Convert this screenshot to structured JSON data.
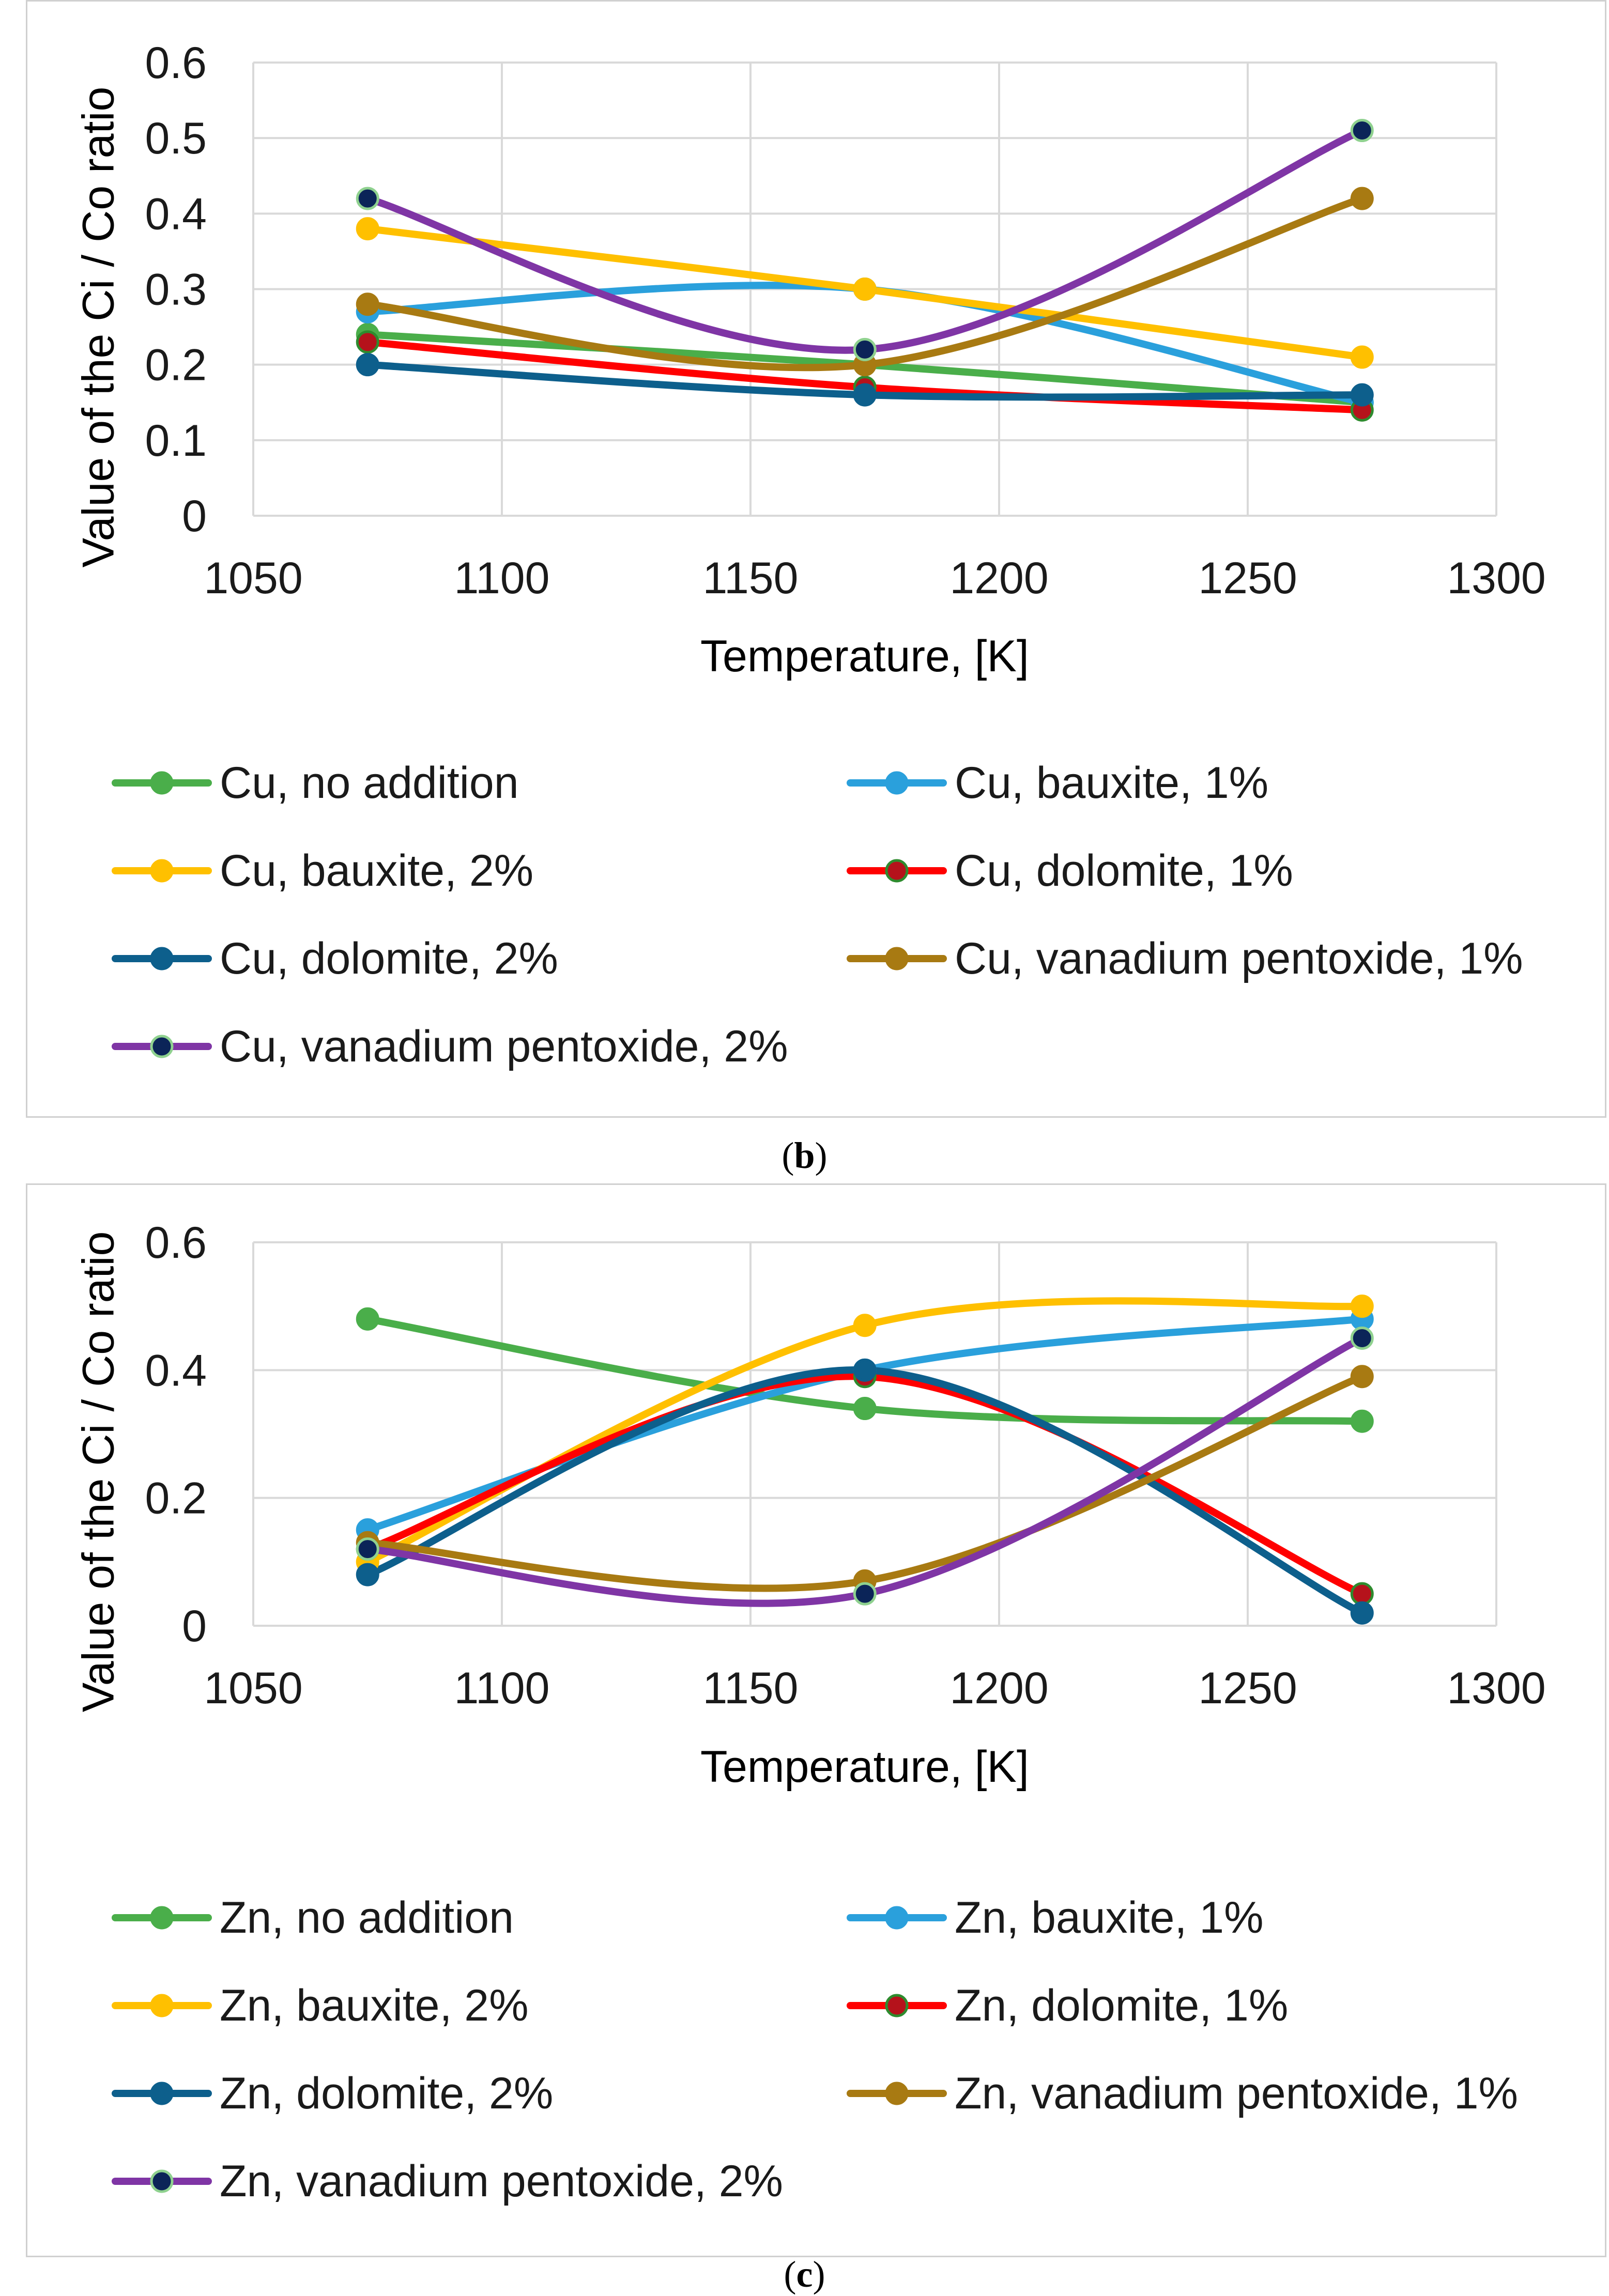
{
  "captions": {
    "b_open": "(",
    "b_letter": "b",
    "b_close": ")",
    "c_open": "(",
    "c_letter": "c",
    "c_close": ")"
  },
  "chart_data": [
    {
      "type": "line",
      "smooth": true,
      "panel_label": "(b)",
      "xlabel": "Temperature, [K]",
      "ylabel": "Value of the Ci / Co ratio",
      "xlim": [
        1050,
        1300
      ],
      "ylim": [
        0,
        0.6
      ],
      "xticks": [
        1050,
        1100,
        1150,
        1200,
        1250,
        1300
      ],
      "yticks": [
        0,
        0.1,
        0.2,
        0.3,
        0.4,
        0.5,
        0.6
      ],
      "ytick_labels": [
        "0",
        "0.1",
        "0.2",
        "0.3",
        "0.4",
        "0.5",
        "0.6"
      ],
      "grid": true,
      "legend_position": "bottom",
      "x": [
        1073,
        1173,
        1273
      ],
      "series": [
        {
          "name": "Cu, no addition",
          "values": [
            0.24,
            0.2,
            0.15
          ],
          "color": "#4aae4a",
          "marker_fill": "#4aae4a",
          "marker_edge": "#4aae4a"
        },
        {
          "name": "Cu, bauxite, 1%",
          "values": [
            0.27,
            0.3,
            0.15
          ],
          "color": "#2aa0dc",
          "marker_fill": "#2aa0dc",
          "marker_edge": "#2aa0dc"
        },
        {
          "name": "Cu, bauxite, 2%",
          "values": [
            0.38,
            0.3,
            0.21
          ],
          "color": "#ffc000",
          "marker_fill": "#ffc000",
          "marker_edge": "#ffc000"
        },
        {
          "name": "Cu, dolomite, 1%",
          "values": [
            0.23,
            0.17,
            0.14
          ],
          "color": "#ff0000",
          "marker_fill": "#b5121b",
          "marker_edge": "#2e8b2e"
        },
        {
          "name": "Cu, dolomite, 2%",
          "values": [
            0.2,
            0.16,
            0.16
          ],
          "color": "#0d5f8c",
          "marker_fill": "#0d5f8c",
          "marker_edge": "#0d5f8c"
        },
        {
          "name": "Cu, vanadium pentoxide, 1%",
          "values": [
            0.28,
            0.2,
            0.42
          ],
          "color": "#a87a12",
          "marker_fill": "#a87a12",
          "marker_edge": "#a87a12"
        },
        {
          "name": "Cu, vanadium pentoxide, 2%",
          "values": [
            0.42,
            0.22,
            0.51
          ],
          "color": "#7f35a5",
          "marker_fill": "#0b2458",
          "marker_edge": "#8fd18f"
        }
      ]
    },
    {
      "type": "line",
      "smooth": true,
      "panel_label": "(c)",
      "xlabel": "Temperature, [K]",
      "ylabel": "Value of the Ci / Co ratio",
      "xlim": [
        1050,
        1300
      ],
      "ylim": [
        0,
        0.6
      ],
      "xticks": [
        1050,
        1100,
        1150,
        1200,
        1250,
        1300
      ],
      "yticks": [
        0,
        0.2,
        0.4,
        0.6
      ],
      "ytick_labels": [
        "0",
        "0.2",
        "0.4",
        "0.6"
      ],
      "grid": true,
      "legend_position": "bottom",
      "x": [
        1073,
        1173,
        1273
      ],
      "series": [
        {
          "name": "Zn, no addition",
          "values": [
            0.48,
            0.34,
            0.32
          ],
          "color": "#4aae4a",
          "marker_fill": "#4aae4a",
          "marker_edge": "#4aae4a"
        },
        {
          "name": "Zn, bauxite, 1%",
          "values": [
            0.15,
            0.4,
            0.48
          ],
          "color": "#2aa0dc",
          "marker_fill": "#2aa0dc",
          "marker_edge": "#2aa0dc"
        },
        {
          "name": "Zn, bauxite, 2%",
          "values": [
            0.1,
            0.47,
            0.5
          ],
          "color": "#ffc000",
          "marker_fill": "#ffc000",
          "marker_edge": "#ffc000"
        },
        {
          "name": "Zn, dolomite, 1%",
          "values": [
            0.12,
            0.39,
            0.05
          ],
          "color": "#ff0000",
          "marker_fill": "#b5121b",
          "marker_edge": "#2e8b2e"
        },
        {
          "name": "Zn, dolomite, 2%",
          "values": [
            0.08,
            0.4,
            0.02
          ],
          "color": "#0d5f8c",
          "marker_fill": "#0d5f8c",
          "marker_edge": "#0d5f8c"
        },
        {
          "name": "Zn, vanadium pentoxide, 1%",
          "values": [
            0.13,
            0.07,
            0.39
          ],
          "color": "#a87a12",
          "marker_fill": "#a87a12",
          "marker_edge": "#a87a12"
        },
        {
          "name": "Zn, vanadium pentoxide, 2%",
          "values": [
            0.12,
            0.05,
            0.45
          ],
          "color": "#7f35a5",
          "marker_fill": "#0b2458",
          "marker_edge": "#8fd18f"
        }
      ]
    }
  ]
}
